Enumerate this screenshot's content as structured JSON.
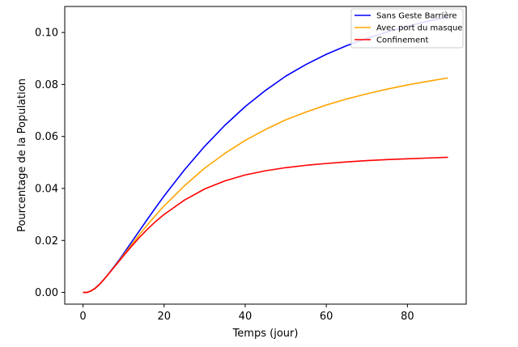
{
  "chart_data": {
    "type": "line",
    "title": "",
    "xlabel": "Temps (jour)",
    "ylabel": "Pourcentage de la Population",
    "xlim": [
      -4.5,
      94.5
    ],
    "ylim": [
      -0.0045,
      0.11
    ],
    "x_ticks": [
      0,
      20,
      40,
      60,
      80
    ],
    "x_tick_labels": [
      "0",
      "20",
      "40",
      "60",
      "80"
    ],
    "y_ticks": [
      0.0,
      0.02,
      0.04,
      0.06,
      0.08,
      0.1
    ],
    "y_tick_labels": [
      "0.00",
      "0.02",
      "0.04",
      "0.06",
      "0.08",
      "0.10"
    ],
    "grid": false,
    "legend_position": "top-right",
    "x": [
      0,
      1,
      2,
      3,
      4,
      5,
      6,
      7,
      8,
      9,
      10,
      12,
      14,
      16,
      18,
      20,
      25,
      30,
      35,
      40,
      45,
      50,
      55,
      60,
      65,
      70,
      75,
      80,
      85,
      90
    ],
    "series": [
      {
        "name": "Sans Geste Barrière",
        "color": "#0000ff",
        "values": [
          0.0,
          0.0,
          0.0006,
          0.0016,
          0.003,
          0.0047,
          0.0066,
          0.0086,
          0.0106,
          0.0127,
          0.0149,
          0.0194,
          0.0239,
          0.0284,
          0.0328,
          0.0371,
          0.0471,
          0.0562,
          0.0643,
          0.0715,
          0.0777,
          0.0832,
          0.0877,
          0.0916,
          0.0949,
          0.0977,
          0.1002,
          0.1024,
          0.1043,
          0.106
        ]
      },
      {
        "name": "Avec port du masque",
        "color": "#ffa500",
        "values": [
          0.0,
          0.0,
          0.0006,
          0.0016,
          0.003,
          0.0047,
          0.0066,
          0.0085,
          0.0104,
          0.0124,
          0.0144,
          0.0184,
          0.0224,
          0.0262,
          0.0298,
          0.0333,
          0.041,
          0.0478,
          0.0535,
          0.0585,
          0.0627,
          0.0664,
          0.0694,
          0.0721,
          0.0744,
          0.0764,
          0.0782,
          0.0798,
          0.0812,
          0.0825
        ]
      },
      {
        "name": "Confinement",
        "color": "#ff0000",
        "values": [
          0.0,
          0.0,
          0.0006,
          0.0016,
          0.003,
          0.0047,
          0.0065,
          0.0084,
          0.0103,
          0.0122,
          0.0141,
          0.0178,
          0.0213,
          0.0245,
          0.0274,
          0.03,
          0.0355,
          0.0398,
          0.0429,
          0.0452,
          0.0468,
          0.048,
          0.0489,
          0.0496,
          0.0502,
          0.0507,
          0.0511,
          0.0514,
          0.0517,
          0.052
        ]
      }
    ]
  }
}
